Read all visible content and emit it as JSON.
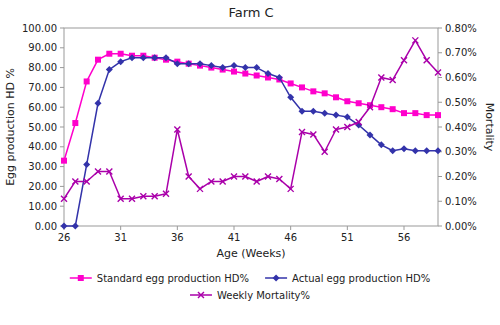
{
  "chart_data": {
    "type": "line",
    "title": "Farm C",
    "x_label": "Age (Weeks)",
    "y_label": "Egg production HD %",
    "y2_label": "Mortality",
    "x": [
      26,
      27,
      28,
      29,
      30,
      31,
      32,
      33,
      34,
      35,
      36,
      37,
      38,
      39,
      40,
      41,
      42,
      43,
      44,
      45,
      46,
      47,
      48,
      49,
      50,
      51,
      52,
      53,
      54,
      55,
      56,
      57,
      58,
      59
    ],
    "series": [
      {
        "name": "Standard egg production HD%",
        "color": "#ff00cc",
        "marker": "square",
        "values": [
          33,
          52,
          73,
          84,
          87,
          87,
          86,
          86,
          85,
          84,
          83,
          82,
          81,
          80,
          79,
          78,
          77,
          76,
          75,
          74,
          72,
          70,
          68,
          67,
          65,
          63,
          62,
          61,
          60,
          59,
          57,
          57,
          56,
          56
        ]
      },
      {
        "name": "Actual egg production HD%",
        "color": "#3333aa",
        "marker": "diamond",
        "values": [
          0,
          0,
          31,
          62,
          79,
          83,
          85,
          85,
          85,
          85,
          82,
          82,
          82,
          81,
          80,
          81,
          80,
          80,
          77,
          75,
          65,
          58,
          58,
          57,
          56,
          55,
          51,
          46,
          41,
          38,
          39,
          38,
          38,
          38
        ]
      },
      {
        "name": "Weekly Mortality%",
        "color": "#aa00aa",
        "marker": "x",
        "axis": "y2",
        "values": [
          0.0011,
          0.0018,
          0.0018,
          0.0022,
          0.0022,
          0.0011,
          0.0011,
          0.0012,
          0.0012,
          0.0013,
          0.0039,
          0.002,
          0.0015,
          0.0018,
          0.0018,
          0.002,
          0.002,
          0.0018,
          0.002,
          0.0019,
          0.0015,
          0.0038,
          0.0037,
          0.003,
          0.0039,
          0.004,
          0.0042,
          0.0048,
          0.006,
          0.0059,
          0.0067,
          0.0075,
          0.0067,
          0.0062
        ]
      }
    ],
    "xlim": [
      26,
      59
    ],
    "xticks": [
      26,
      31,
      36,
      41,
      46,
      51,
      56
    ],
    "ylim": [
      0,
      100
    ],
    "yticks": [
      {
        "value": 0,
        "label": "0.00"
      },
      {
        "value": 10,
        "label": "10.00"
      },
      {
        "value": 20,
        "label": "20.00"
      },
      {
        "value": 30,
        "label": "30.00"
      },
      {
        "value": 40,
        "label": "40.00"
      },
      {
        "value": 50,
        "label": "50.00"
      },
      {
        "value": 60,
        "label": "60.00"
      },
      {
        "value": 70,
        "label": "70.00"
      },
      {
        "value": 80,
        "label": "80.00"
      },
      {
        "value": 90,
        "label": "90.00"
      },
      {
        "value": 100,
        "label": "100.00"
      }
    ],
    "y2lim": [
      0,
      0.008
    ],
    "y2ticks": [
      {
        "value": 0,
        "label": "0.00%"
      },
      {
        "value": 0.001,
        "label": "0.10%"
      },
      {
        "value": 0.002,
        "label": "0.20%"
      },
      {
        "value": 0.003,
        "label": "0.30%"
      },
      {
        "value": 0.004,
        "label": "0.40%"
      },
      {
        "value": 0.005,
        "label": "0.50%"
      },
      {
        "value": 0.006,
        "label": "0.60%"
      },
      {
        "value": 0.007,
        "label": "0.70%"
      },
      {
        "value": 0.008,
        "label": "0.80%"
      }
    ],
    "grid": false,
    "legend": "bottom"
  }
}
